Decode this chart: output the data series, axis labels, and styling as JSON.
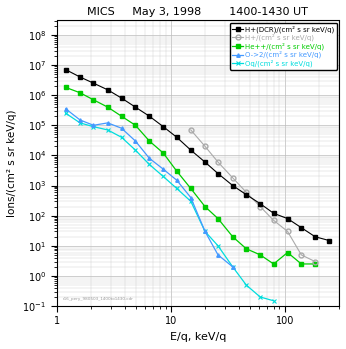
{
  "title_left": "MICS",
  "title_mid": "May 3, 1998",
  "title_right": "1400-1430 UT",
  "xlabel": "E/q, keV/q",
  "ylabel": "Ions/(cm² s sr keV/q)",
  "xlim": [
    1,
    300
  ],
  "ylim": [
    0.1,
    300000000.0
  ],
  "watermark": "r16_pery_980503_1400to1430.cdr",
  "H_DCR_x": [
    1.2,
    1.6,
    2.1,
    2.8,
    3.7,
    4.9,
    6.5,
    8.6,
    11.3,
    15,
    20,
    26,
    35,
    46,
    61,
    80,
    106,
    140,
    185,
    245
  ],
  "H_DCR_y": [
    7000000.0,
    4000000.0,
    2500000.0,
    1500000.0,
    800000.0,
    400000.0,
    200000.0,
    90000.0,
    40000.0,
    15000.0,
    6000,
    2500,
    1000,
    500,
    250,
    120,
    80,
    40,
    20,
    15
  ],
  "H_x": [
    15,
    20,
    26,
    35,
    46,
    61,
    80,
    106,
    140,
    185
  ],
  "H_y": [
    70000.0,
    20000.0,
    6000,
    1800,
    600,
    200,
    70,
    30,
    5,
    3
  ],
  "Hepp_x": [
    1.2,
    1.6,
    2.1,
    2.8,
    3.7,
    4.9,
    6.5,
    8.6,
    11.3,
    15,
    20,
    26,
    35,
    46,
    61,
    80,
    106,
    140,
    185
  ],
  "Hepp_y": [
    1800000.0,
    1200000.0,
    700000.0,
    400000.0,
    200000.0,
    100000.0,
    30000.0,
    12000.0,
    3000,
    800,
    200,
    80,
    20,
    8,
    5,
    2.5,
    6,
    2.5,
    2.5
  ],
  "Op2_x": [
    1.2,
    1.6,
    2.1,
    2.8,
    3.7,
    4.9,
    6.5,
    8.6,
    11.3,
    15,
    20,
    26,
    35
  ],
  "Op2_y": [
    350000.0,
    150000.0,
    100000.0,
    120000.0,
    80000.0,
    30000.0,
    8000,
    3500,
    1500,
    400,
    30,
    5,
    2
  ],
  "Oq_x": [
    1.2,
    1.6,
    2.1,
    2.8,
    3.7,
    4.9,
    6.5,
    8.6,
    11.3,
    15,
    20,
    26,
    35,
    46,
    61,
    80
  ],
  "Oq_y": [
    250000.0,
    120000.0,
    90000.0,
    70000.0,
    40000.0,
    15000.0,
    5000,
    2000,
    800,
    300,
    30,
    10,
    2,
    0.5,
    0.2,
    0.15
  ],
  "color_H_DCR": "#000000",
  "color_H": "#aaaaaa",
  "color_Hepp": "#00cc00",
  "color_Op2": "#4499ff",
  "color_Oq": "#00dddd",
  "legend_labels": [
    "H+(DCR)/(cm² s sr keV/q)",
    "H+/(cm² s sr keV/q)",
    "He++/(cm² s sr keV/q)",
    "O->2/(cm² s sr keV/q)",
    "Oq/(cm² s sr keV/q)"
  ]
}
